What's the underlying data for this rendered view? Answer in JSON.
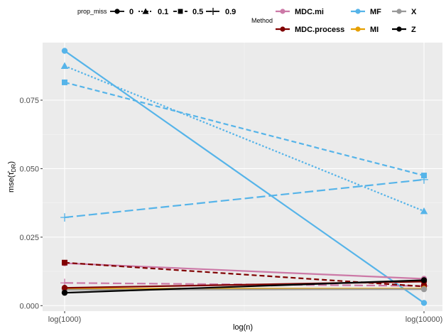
{
  "chart_data": {
    "type": "line",
    "xlabel": "log(n)",
    "ylabel_main": "mse(",
    "ylabel_hat": "τ̂",
    "ylabel_sub": "DR",
    "ylabel_close": ")",
    "x_categories": [
      "log(1000)",
      "log(10000)"
    ],
    "yticks": [
      "0.000",
      "0.025",
      "0.050",
      "0.075"
    ],
    "ytick_values": [
      0.0,
      0.025,
      0.05,
      0.075
    ],
    "ylim": [
      -0.002,
      0.096
    ],
    "grid": true,
    "legend_position": "top",
    "legend_prop": {
      "title": "prop_miss",
      "entries": [
        {
          "label": "0",
          "dash": "solid",
          "shape": "circle"
        },
        {
          "label": "0.1",
          "dash": "dotted",
          "shape": "triangle"
        },
        {
          "label": "0.5",
          "dash": "dashed",
          "shape": "square"
        },
        {
          "label": "0.9",
          "dash": "longdash",
          "shape": "plus"
        }
      ]
    },
    "legend_method": {
      "title": "Method",
      "entries": [
        {
          "label": "MDC.mi",
          "color": "#CC79A7"
        },
        {
          "label": "MDC.process",
          "color": "#800000"
        },
        {
          "label": "MF",
          "color": "#56B4E9"
        },
        {
          "label": "MI",
          "color": "#E69F00"
        },
        {
          "label": "X",
          "color": "#999999"
        },
        {
          "label": "Z",
          "color": "#000000"
        }
      ]
    },
    "series": [
      {
        "method": "MF",
        "prop_miss": "0",
        "values": [
          0.093,
          0.001
        ]
      },
      {
        "method": "MF",
        "prop_miss": "0.1",
        "values": [
          0.0875,
          0.0345
        ]
      },
      {
        "method": "MF",
        "prop_miss": "0.5",
        "values": [
          0.0815,
          0.0475
        ]
      },
      {
        "method": "MF",
        "prop_miss": "0.9",
        "values": [
          0.0322,
          0.046
        ]
      },
      {
        "method": "MDC.mi",
        "prop_miss": "0",
        "values": [
          0.0155,
          0.0098
        ]
      },
      {
        "method": "MDC.mi",
        "prop_miss": "0.9",
        "values": [
          0.0083,
          0.0072
        ]
      },
      {
        "method": "MDC.process",
        "prop_miss": "0.5",
        "values": [
          0.0157,
          0.007
        ]
      },
      {
        "method": "MI",
        "prop_miss": "0",
        "values": [
          0.0062,
          0.0062
        ]
      },
      {
        "method": "X",
        "prop_miss": "0",
        "values": [
          0.0058,
          0.006
        ]
      },
      {
        "method": "MDC.process",
        "prop_miss": "0",
        "values": [
          0.0065,
          0.0088
        ]
      },
      {
        "method": "Z",
        "prop_miss": "0",
        "values": [
          0.0047,
          0.0093
        ]
      }
    ]
  }
}
